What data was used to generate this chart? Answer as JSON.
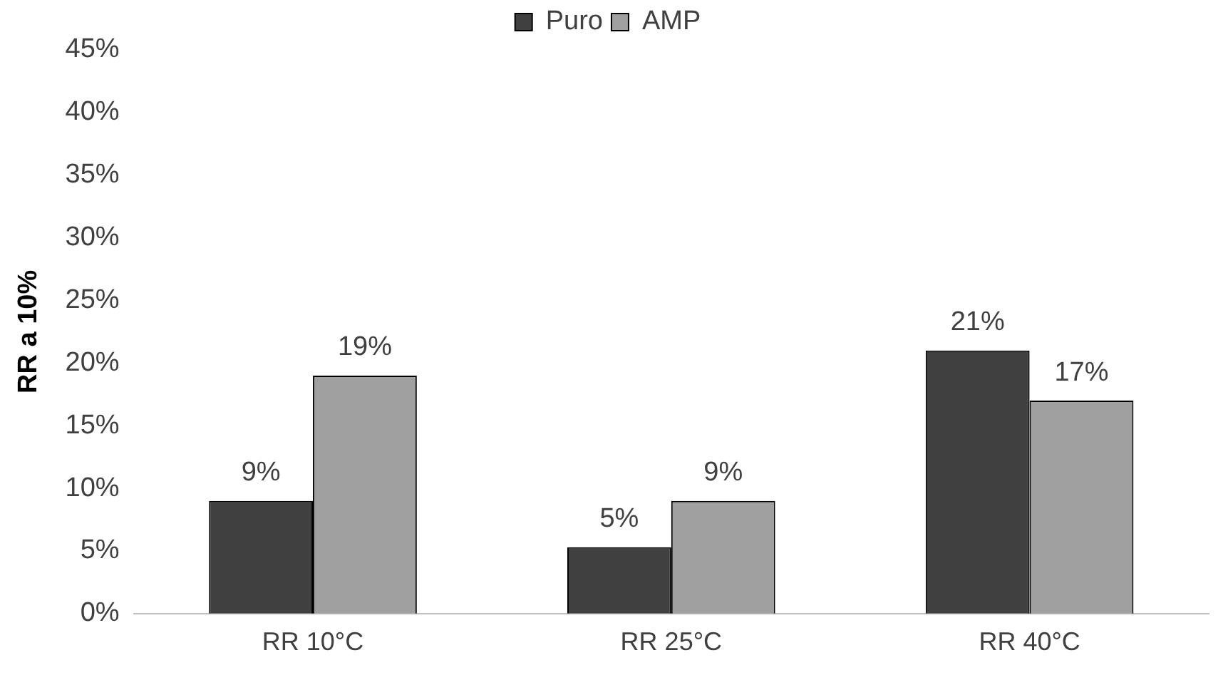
{
  "chart_data": {
    "type": "bar",
    "ylabel": "RR a 10%",
    "categories": [
      "RR 10°C",
      "RR 25°C",
      "RR 40°C"
    ],
    "series": [
      {
        "name": "Puro",
        "color": "#404040",
        "values": [
          9,
          5.3,
          21
        ],
        "value_labels": [
          "9%",
          "5%",
          "21%"
        ]
      },
      {
        "name": "AMP",
        "color": "#a0a0a0",
        "values": [
          19,
          9,
          17
        ],
        "value_labels": [
          "19%",
          "9%",
          "17%"
        ]
      }
    ],
    "ylim": [
      0,
      45
    ],
    "yticks": [
      {
        "value": 0,
        "label": "0%"
      },
      {
        "value": 5,
        "label": "5%"
      },
      {
        "value": 10,
        "label": "10%"
      },
      {
        "value": 15,
        "label": "15%"
      },
      {
        "value": 20,
        "label": "20%"
      },
      {
        "value": 25,
        "label": "25%"
      },
      {
        "value": 30,
        "label": "30%"
      },
      {
        "value": 35,
        "label": "35%"
      },
      {
        "value": 40,
        "label": "40%"
      },
      {
        "value": 45,
        "label": "45%"
      }
    ],
    "grid": false,
    "legend": "top"
  }
}
